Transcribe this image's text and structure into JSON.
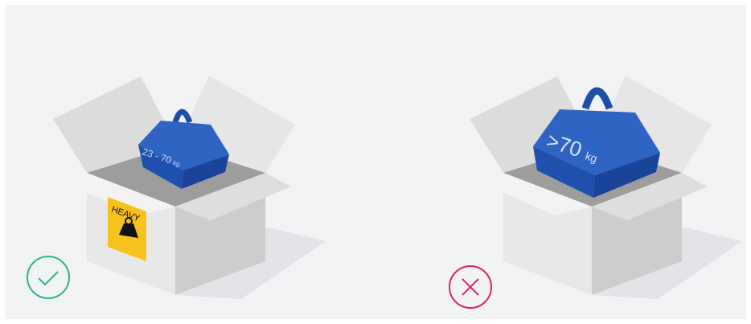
{
  "left": {
    "weight_label": "23 - 70",
    "weight_unit": "kg",
    "sticker": "HEAVY"
  },
  "right": {
    "weight_label": ">70",
    "weight_unit": "kg"
  }
}
